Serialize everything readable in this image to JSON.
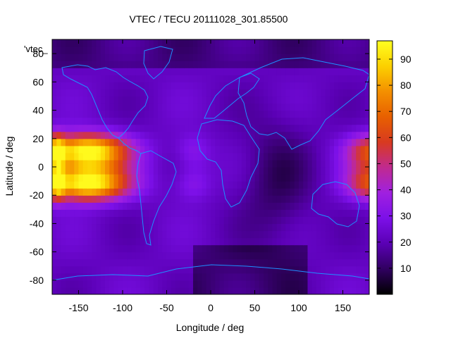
{
  "chart_data": {
    "type": "heatmap",
    "title": "VTEC / TECU 20111028_301.85500",
    "xlabel": "Longitude / deg",
    "ylabel": "Latitude / deg",
    "legend_label": "'vtec_",
    "xlim": [
      -180,
      180
    ],
    "ylim": [
      -90,
      90
    ],
    "x_ticks": [
      -150,
      -100,
      -50,
      0,
      50,
      100,
      150
    ],
    "y_ticks": [
      -80,
      -60,
      -40,
      -20,
      0,
      20,
      40,
      60,
      80
    ],
    "colorbar": {
      "range": [
        0,
        97
      ],
      "ticks": [
        10,
        20,
        30,
        40,
        50,
        60,
        70,
        80,
        90
      ],
      "palette": "gnuplot rgbformulae 7,5,15 (black-purple-red-orange-yellow)"
    },
    "grid": false,
    "legend_position": "top-left"
  }
}
